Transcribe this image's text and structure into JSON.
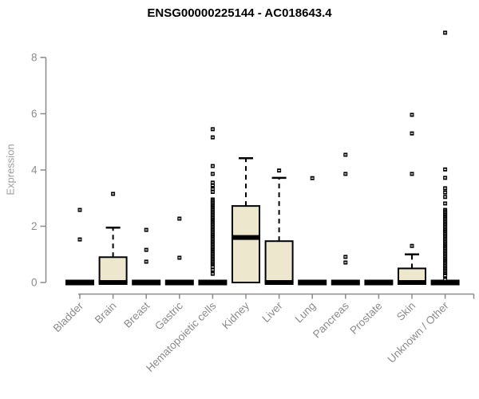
{
  "title": "ENSG00000225144 - AC018643.4",
  "colors": {
    "background": "#ffffff",
    "title": "#000000",
    "axis": "#8b8b8b",
    "tick_label": "#8b8b8b",
    "axis_label": "#9c9c9c",
    "box_fill": "#ede7cd",
    "box_stroke": "#000000",
    "median": "#000000",
    "outlier": "#000000"
  },
  "chart_data": {
    "type": "boxplot",
    "title": "ENSG00000225144 - AC018643.4",
    "xlabel": "",
    "ylabel": "Expression",
    "ylim": [
      0,
      8.9
    ],
    "yticks": [
      0,
      2,
      4,
      6,
      8
    ],
    "grid": false,
    "legend": false,
    "categories": [
      "Bladder",
      "Brain",
      "Breast",
      "Gastric",
      "Hematopoietic cells",
      "Kidney",
      "Liver",
      "Lung",
      "Pancreas",
      "Prostate",
      "Skin",
      "Unknown / Other"
    ],
    "series": [
      {
        "name": "Bladder",
        "q1": 0,
        "median": 0,
        "q3": 0,
        "whisker_low": 0,
        "whisker_high": 0,
        "outliers": [
          2.58,
          1.53
        ]
      },
      {
        "name": "Brain",
        "q1": 0,
        "median": 0,
        "q3": 0.9,
        "whisker_low": 0,
        "whisker_high": 1.95,
        "outliers": [
          3.15
        ]
      },
      {
        "name": "Breast",
        "q1": 0,
        "median": 0,
        "q3": 0,
        "whisker_low": 0,
        "whisker_high": 0,
        "outliers": [
          1.87,
          1.16,
          0.74
        ]
      },
      {
        "name": "Gastric",
        "q1": 0,
        "median": 0,
        "q3": 0,
        "whisker_low": 0,
        "whisker_high": 0,
        "outliers": [
          2.27,
          0.88
        ]
      },
      {
        "name": "Hematopoietic cells",
        "q1": 0,
        "median": 0,
        "q3": 0,
        "whisker_low": 0,
        "whisker_high": 0,
        "outliers": [
          5.45,
          5.16,
          4.14,
          3.86,
          3.55,
          3.45,
          3.32,
          3.22,
          2.95,
          2.89,
          2.83,
          2.77,
          2.71,
          2.65,
          2.59,
          2.53,
          2.47,
          2.41,
          2.35,
          2.29,
          2.23,
          2.17,
          2.11,
          2.05,
          1.99,
          1.93,
          1.87,
          1.81,
          1.75,
          1.69,
          1.63,
          1.57,
          1.51,
          1.45,
          1.39,
          1.33,
          1.27,
          1.21,
          1.15,
          1.09,
          1.03,
          0.97,
          0.91,
          0.85,
          0.79,
          0.73,
          0.67,
          0.61,
          0.55,
          0.45,
          0.31
        ]
      },
      {
        "name": "Kidney",
        "q1": 0,
        "median": 1.6,
        "q3": 2.72,
        "whisker_low": 0,
        "whisker_high": 4.42,
        "outliers": []
      },
      {
        "name": "Liver",
        "q1": 0,
        "median": 0,
        "q3": 1.47,
        "whisker_low": 0,
        "whisker_high": 3.72,
        "outliers": [
          3.98
        ]
      },
      {
        "name": "Lung",
        "q1": 0,
        "median": 0,
        "q3": 0,
        "whisker_low": 0,
        "whisker_high": 0,
        "outliers": [
          3.71
        ]
      },
      {
        "name": "Pancreas",
        "q1": 0,
        "median": 0,
        "q3": 0,
        "whisker_low": 0,
        "whisker_high": 0,
        "outliers": [
          4.54,
          3.86,
          0.91,
          0.71
        ]
      },
      {
        "name": "Prostate",
        "q1": 0,
        "median": 0,
        "q3": 0,
        "whisker_low": 0,
        "whisker_high": 0,
        "outliers": []
      },
      {
        "name": "Skin",
        "q1": 0,
        "median": 0,
        "q3": 0.5,
        "whisker_low": 0,
        "whisker_high": 1.0,
        "outliers": [
          5.96,
          5.3,
          3.86,
          1.3
        ]
      },
      {
        "name": "Unknown / Other",
        "q1": 0,
        "median": 0,
        "q3": 0,
        "whisker_low": 0,
        "whisker_high": 0,
        "outliers": [
          8.88,
          4.02,
          3.72,
          3.35,
          3.2,
          3.04,
          2.81,
          2.58,
          2.52,
          2.46,
          2.4,
          2.34,
          2.28,
          2.22,
          2.16,
          2.1,
          2.04,
          1.98,
          1.92,
          1.86,
          1.8,
          1.74,
          1.68,
          1.62,
          1.56,
          1.5,
          1.44,
          1.38,
          1.32,
          1.26,
          1.2,
          1.14,
          1.08,
          1.02,
          0.96,
          0.9,
          0.84,
          0.78,
          0.72,
          0.66,
          0.6,
          0.54,
          0.48,
          0.42,
          0.36,
          0.3,
          0.24,
          0.11
        ]
      }
    ]
  }
}
